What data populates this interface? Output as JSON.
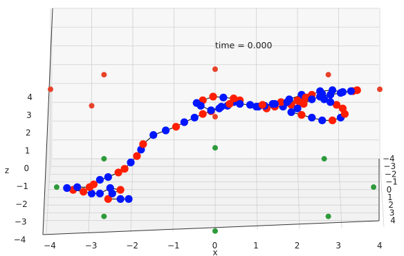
{
  "chart_data": {
    "type": "scatter",
    "title": "",
    "annotation": "time = 0.000",
    "xlabel": "x",
    "zlabel": "z",
    "xticks": [
      "−4",
      "−3",
      "−2",
      "−1",
      "0",
      "1",
      "2",
      "3",
      "4"
    ],
    "yticks": [
      "−4",
      "−3",
      "−2",
      "−1",
      "0",
      "1",
      "2",
      "3",
      "4"
    ],
    "zticks": [
      "4",
      "3",
      "2",
      "1",
      "0",
      "−1",
      "−2",
      "−3",
      "−4"
    ],
    "xlim": [
      -4,
      4
    ],
    "zlim": [
      -4,
      4
    ],
    "grid": true,
    "colors": {
      "pane": "#f2f2f2",
      "grid": "#cfcfcf",
      "blue": "#0016ff",
      "red": "#ff1e00",
      "chain": "#000000",
      "fixed_top": "#e8412a",
      "fixed_bottom": "#2e9a3a"
    },
    "chain": [
      {
        "x": -2.1,
        "z": -1.6,
        "c": "blue"
      },
      {
        "x": -2.3,
        "z": -1.6,
        "c": "blue"
      },
      {
        "x": -2.6,
        "z": -1.6,
        "c": "red"
      },
      {
        "x": -2.5,
        "z": -1.3,
        "c": "blue"
      },
      {
        "x": -2.3,
        "z": -1.1,
        "c": "red"
      },
      {
        "x": -2.55,
        "z": -1.0,
        "c": "blue"
      },
      {
        "x": -2.8,
        "z": -1.3,
        "c": "blue"
      },
      {
        "x": -3.0,
        "z": -1.3,
        "c": "blue"
      },
      {
        "x": -3.2,
        "z": -1.2,
        "c": "red"
      },
      {
        "x": -3.45,
        "z": -1.1,
        "c": "red"
      },
      {
        "x": -3.6,
        "z": -1.0,
        "c": "blue"
      },
      {
        "x": -3.35,
        "z": -0.95,
        "c": "blue"
      },
      {
        "x": -3.05,
        "z": -0.95,
        "c": "red"
      },
      {
        "x": -2.95,
        "z": -0.8,
        "c": "red"
      },
      {
        "x": -2.8,
        "z": -0.55,
        "c": "blue"
      },
      {
        "x": -2.6,
        "z": -0.4,
        "c": "blue"
      },
      {
        "x": -2.35,
        "z": -0.15,
        "c": "red"
      },
      {
        "x": -2.2,
        "z": 0.05,
        "c": "red"
      },
      {
        "x": -2.05,
        "z": 0.4,
        "c": "blue"
      },
      {
        "x": -1.9,
        "z": 0.75,
        "c": "red"
      },
      {
        "x": -1.8,
        "z": 1.1,
        "c": "blue"
      },
      {
        "x": -1.75,
        "z": 1.4,
        "c": "red"
      },
      {
        "x": -1.5,
        "z": 1.9,
        "c": "blue"
      },
      {
        "x": -1.2,
        "z": 2.15,
        "c": "blue"
      },
      {
        "x": -0.95,
        "z": 2.35,
        "c": "red"
      },
      {
        "x": -0.75,
        "z": 2.6,
        "c": "blue"
      },
      {
        "x": -0.5,
        "z": 2.85,
        "c": "blue"
      },
      {
        "x": -0.3,
        "z": 3.05,
        "c": "red"
      },
      {
        "x": -0.1,
        "z": 3.2,
        "c": "red"
      },
      {
        "x": 0.1,
        "z": 3.35,
        "c": "blue"
      },
      {
        "x": 0.3,
        "z": 3.5,
        "c": "blue"
      },
      {
        "x": 0.45,
        "z": 3.7,
        "c": "blue"
      },
      {
        "x": 0.6,
        "z": 3.8,
        "c": "red"
      },
      {
        "x": 0.45,
        "z": 3.9,
        "c": "red"
      },
      {
        "x": 0.2,
        "z": 3.95,
        "c": "blue"
      },
      {
        "x": -0.05,
        "z": 4.0,
        "c": "red"
      },
      {
        "x": -0.3,
        "z": 3.8,
        "c": "red"
      },
      {
        "x": -0.45,
        "z": 3.65,
        "c": "blue"
      },
      {
        "x": -0.35,
        "z": 3.5,
        "c": "blue"
      },
      {
        "x": -0.1,
        "z": 3.25,
        "c": "blue"
      },
      {
        "x": 0.15,
        "z": 3.45,
        "c": "blue"
      },
      {
        "x": 0.35,
        "z": 3.6,
        "c": "red"
      },
      {
        "x": 0.6,
        "z": 3.6,
        "c": "blue"
      },
      {
        "x": 0.85,
        "z": 3.55,
        "c": "blue"
      },
      {
        "x": 1.05,
        "z": 3.45,
        "c": "blue"
      },
      {
        "x": 1.25,
        "z": 3.35,
        "c": "red"
      },
      {
        "x": 1.45,
        "z": 3.45,
        "c": "red"
      },
      {
        "x": 1.65,
        "z": 3.45,
        "c": "blue"
      },
      {
        "x": 1.85,
        "z": 3.55,
        "c": "red"
      },
      {
        "x": 2.05,
        "z": 3.7,
        "c": "red"
      },
      {
        "x": 2.25,
        "z": 3.95,
        "c": "red"
      },
      {
        "x": 2.1,
        "z": 4.1,
        "c": "blue"
      },
      {
        "x": 1.8,
        "z": 3.85,
        "c": "blue"
      },
      {
        "x": 1.6,
        "z": 3.7,
        "c": "red"
      },
      {
        "x": 1.4,
        "z": 3.6,
        "c": "blue"
      },
      {
        "x": 1.2,
        "z": 3.5,
        "c": "blue"
      },
      {
        "x": 1.0,
        "z": 3.45,
        "c": "blue"
      },
      {
        "x": 1.15,
        "z": 3.55,
        "c": "red"
      },
      {
        "x": 1.45,
        "z": 3.6,
        "c": "blue"
      },
      {
        "x": 1.75,
        "z": 3.7,
        "c": "blue"
      },
      {
        "x": 2.0,
        "z": 3.8,
        "c": "red"
      },
      {
        "x": 2.2,
        "z": 3.95,
        "c": "red"
      },
      {
        "x": 2.35,
        "z": 4.1,
        "c": "red"
      },
      {
        "x": 2.55,
        "z": 4.3,
        "c": "blue"
      },
      {
        "x": 2.85,
        "z": 4.35,
        "c": "blue"
      },
      {
        "x": 3.1,
        "z": 4.25,
        "c": "blue"
      },
      {
        "x": 3.35,
        "z": 4.3,
        "c": "red"
      },
      {
        "x": 3.45,
        "z": 4.35,
        "c": "red"
      },
      {
        "x": 3.3,
        "z": 4.3,
        "c": "blue"
      },
      {
        "x": 3.05,
        "z": 4.2,
        "c": "blue"
      },
      {
        "x": 2.8,
        "z": 4.1,
        "c": "blue"
      },
      {
        "x": 2.55,
        "z": 4.0,
        "c": "blue"
      },
      {
        "x": 2.35,
        "z": 3.85,
        "c": "blue"
      },
      {
        "x": 2.15,
        "z": 3.6,
        "c": "red"
      },
      {
        "x": 2.0,
        "z": 3.35,
        "c": "blue"
      },
      {
        "x": 1.85,
        "z": 3.15,
        "c": "blue"
      },
      {
        "x": 2.1,
        "z": 3.0,
        "c": "red"
      },
      {
        "x": 2.35,
        "z": 2.85,
        "c": "blue"
      },
      {
        "x": 2.6,
        "z": 2.7,
        "c": "blue"
      },
      {
        "x": 2.85,
        "z": 2.7,
        "c": "red"
      },
      {
        "x": 3.05,
        "z": 2.85,
        "c": "blue"
      },
      {
        "x": 3.15,
        "z": 3.05,
        "c": "red"
      },
      {
        "x": 3.1,
        "z": 3.35,
        "c": "red"
      },
      {
        "x": 2.95,
        "z": 3.55,
        "c": "red"
      },
      {
        "x": 2.8,
        "z": 3.7,
        "c": "blue"
      },
      {
        "x": 2.65,
        "z": 3.85,
        "c": "blue"
      },
      {
        "x": 2.55,
        "z": 4.0,
        "c": "blue"
      },
      {
        "x": 2.6,
        "z": 4.15,
        "c": "blue"
      }
    ],
    "fixed_points_top": [
      {
        "x": 0.0,
        "z": 5.5
      },
      {
        "x": -2.7,
        "z": 5.2
      },
      {
        "x": 2.75,
        "z": 5.2
      },
      {
        "x": -4.0,
        "z": 4.4
      },
      {
        "x": 4.0,
        "z": 4.4
      },
      {
        "x": -3.0,
        "z": 3.5
      },
      {
        "x": 0.0,
        "z": 2.9
      }
    ],
    "fixed_points_bottom": [
      {
        "x": 0.0,
        "z": 1.2
      },
      {
        "x": -2.7,
        "z": 0.6
      },
      {
        "x": 2.65,
        "z": 0.6
      },
      {
        "x": -3.85,
        "z": -0.95
      },
      {
        "x": 3.85,
        "z": -0.95
      },
      {
        "x": -2.7,
        "z": -2.55
      },
      {
        "x": 2.75,
        "z": -2.55
      },
      {
        "x": 0.0,
        "z": -3.35
      }
    ]
  }
}
